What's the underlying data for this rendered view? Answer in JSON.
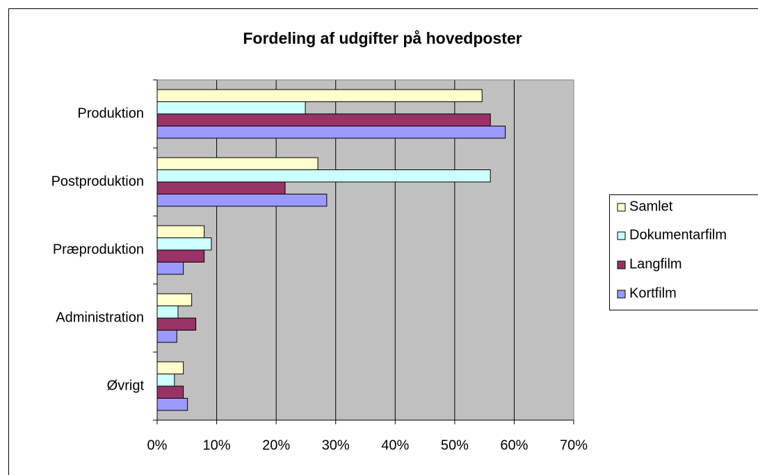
{
  "chart_data": {
    "type": "hbar",
    "title": "Fordeling af udgifter på hovedposter",
    "categories": [
      "Produktion",
      "Postproduktion",
      "Præproduktion",
      "Administration",
      "Øvrigt"
    ],
    "series": [
      {
        "name": "Samlet",
        "color": "#ffffcc",
        "values": [
          54.6,
          27.0,
          7.9,
          5.8,
          4.4
        ]
      },
      {
        "name": "Dokumentarfilm",
        "color": "#ccffff",
        "values": [
          24.9,
          56.0,
          9.1,
          3.5,
          2.9
        ]
      },
      {
        "name": "Langfilm",
        "color": "#993366",
        "values": [
          56.0,
          21.5,
          7.9,
          6.5,
          4.4
        ]
      },
      {
        "name": "Kortfilm",
        "color": "#9999ff",
        "values": [
          58.5,
          28.5,
          4.4,
          3.3,
          5.1
        ]
      }
    ],
    "xlim": [
      0,
      70
    ],
    "xticks": [
      {
        "value": 0,
        "label": "0%"
      },
      {
        "value": 10,
        "label": "10%"
      },
      {
        "value": 20,
        "label": "20%"
      },
      {
        "value": 30,
        "label": "30%"
      },
      {
        "value": 40,
        "label": "40%"
      },
      {
        "value": 50,
        "label": "50%"
      },
      {
        "value": 60,
        "label": "60%"
      },
      {
        "value": 70,
        "label": "70%"
      }
    ],
    "grid": true,
    "legend": "right"
  }
}
